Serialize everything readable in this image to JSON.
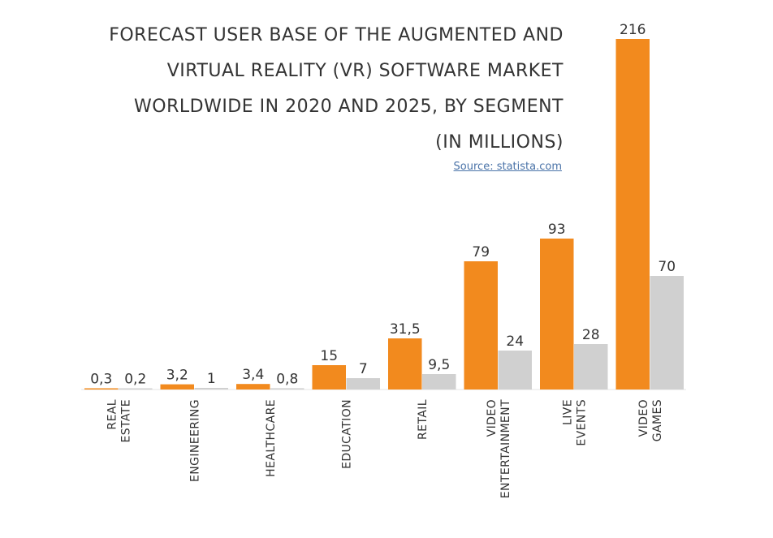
{
  "title_lines": [
    "FORECAST USER  BASE OF THE AUGMENTED AND",
    "VIRTUAL REALITY (VR) SOFTWARE MARKET",
    "WORLDWIDE IN 2020 AND 2025, BY SEGMENT",
    "(IN MILLIONS)"
  ],
  "source": "Source: statista.com",
  "chart_data": {
    "type": "bar",
    "title": "FORECAST USER  BASE OF THE AUGMENTED AND VIRTUAL REALITY (VR) SOFTWARE MARKET WORLDWIDE IN 2020 AND 2025, BY SEGMENT (IN MILLIONS)",
    "categories": [
      [
        "REAL",
        "ESTATE"
      ],
      [
        "ENGINEERING"
      ],
      [
        "HEALTHCARE"
      ],
      [
        "EDUCATION"
      ],
      [
        "RETAIL"
      ],
      [
        "VIDEO",
        "ENTERTAINMENT"
      ],
      [
        "LIVE",
        "EVENTS"
      ],
      [
        "VIDEO",
        "GAMES"
      ]
    ],
    "series": [
      {
        "color": "#f28a1e",
        "values": [
          0.3,
          3.2,
          3.4,
          15,
          31.5,
          79,
          93,
          216
        ],
        "labels": [
          "0,3",
          "3,2",
          "3,4",
          "15",
          "31,5",
          "79",
          "93",
          "216"
        ]
      },
      {
        "color": "#d0d0d0",
        "values": [
          0.2,
          1,
          0.8,
          7,
          9.5,
          24,
          28,
          70
        ],
        "labels": [
          "0,2",
          "1",
          "0,8",
          "7",
          "9,5",
          "24",
          "28",
          "70"
        ]
      }
    ],
    "ylim": [
      0,
      216
    ],
    "grid": false,
    "legend": "none"
  }
}
